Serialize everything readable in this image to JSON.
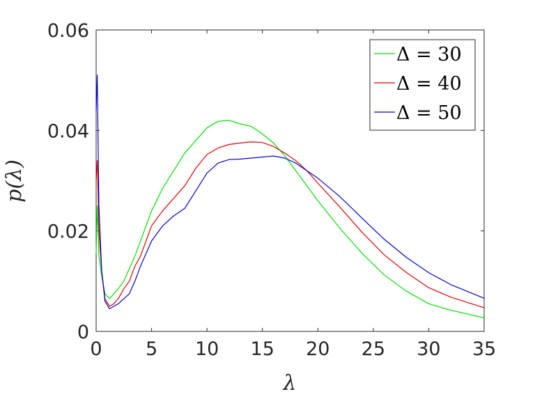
{
  "chart_data": {
    "type": "line",
    "title": "",
    "xlabel": "λ",
    "ylabel": "p(λ)",
    "xlim": [
      0,
      35
    ],
    "ylim": [
      0,
      0.06
    ],
    "x_ticks": [
      "0",
      "5",
      "10",
      "15",
      "20",
      "25",
      "30",
      "35"
    ],
    "y_ticks": [
      "0",
      "0.02",
      "0.04",
      "0.06"
    ],
    "grid": false,
    "legend_position": "top-right",
    "series": [
      {
        "name": "Δ = 30",
        "color": "#00e000",
        "x": [
          0,
          0.1,
          0.25,
          0.5,
          0.8,
          1.2,
          1.6,
          2,
          2.5,
          3,
          3.5,
          4,
          5,
          6,
          7,
          8,
          9,
          10,
          11,
          12,
          13,
          14,
          15,
          16,
          17,
          18,
          19,
          20,
          22,
          24,
          26,
          28,
          30,
          32,
          35
        ],
        "values": [
          0.0155,
          0.025,
          0.015,
          0.011,
          0.0075,
          0.0065,
          0.0075,
          0.0085,
          0.01,
          0.0125,
          0.015,
          0.018,
          0.024,
          0.0285,
          0.032,
          0.0355,
          0.038,
          0.0405,
          0.0418,
          0.042,
          0.0413,
          0.0408,
          0.0393,
          0.0375,
          0.035,
          0.032,
          0.029,
          0.026,
          0.0205,
          0.0155,
          0.0112,
          0.008,
          0.0055,
          0.0042,
          0.0027
        ]
      },
      {
        "name": "Δ = 40",
        "color": "#e00000",
        "x": [
          0,
          0.1,
          0.25,
          0.5,
          0.8,
          1.2,
          1.6,
          2,
          2.5,
          3,
          3.5,
          4,
          5,
          6,
          7,
          8,
          9,
          10,
          11,
          12,
          13,
          14,
          15,
          16,
          17,
          18,
          19,
          20,
          22,
          24,
          26,
          28,
          30,
          32,
          35
        ],
        "values": [
          0.03,
          0.034,
          0.02,
          0.012,
          0.0065,
          0.005,
          0.0055,
          0.0065,
          0.0085,
          0.01,
          0.013,
          0.015,
          0.021,
          0.024,
          0.0265,
          0.029,
          0.0325,
          0.0352,
          0.0365,
          0.0372,
          0.0375,
          0.0377,
          0.0376,
          0.0368,
          0.0355,
          0.034,
          0.032,
          0.0295,
          0.0247,
          0.0197,
          0.0152,
          0.0117,
          0.0087,
          0.0068,
          0.0047
        ]
      },
      {
        "name": "Δ = 50",
        "color": "#0000d0",
        "x": [
          0,
          0.1,
          0.25,
          0.5,
          0.8,
          1.2,
          1.6,
          2,
          2.5,
          3,
          3.5,
          4,
          5,
          6,
          7,
          8,
          9,
          10,
          11,
          12,
          13,
          14,
          15,
          16,
          17,
          18,
          19,
          20,
          22,
          24,
          26,
          28,
          30,
          32,
          35
        ],
        "values": [
          0.044,
          0.051,
          0.025,
          0.012,
          0.006,
          0.0045,
          0.005,
          0.0055,
          0.0065,
          0.0075,
          0.01,
          0.013,
          0.018,
          0.021,
          0.023,
          0.0245,
          0.028,
          0.0315,
          0.0335,
          0.0342,
          0.0343,
          0.0345,
          0.0347,
          0.0349,
          0.0345,
          0.0335,
          0.032,
          0.0305,
          0.0268,
          0.0225,
          0.0183,
          0.0147,
          0.0117,
          0.0093,
          0.0066
        ]
      }
    ]
  }
}
